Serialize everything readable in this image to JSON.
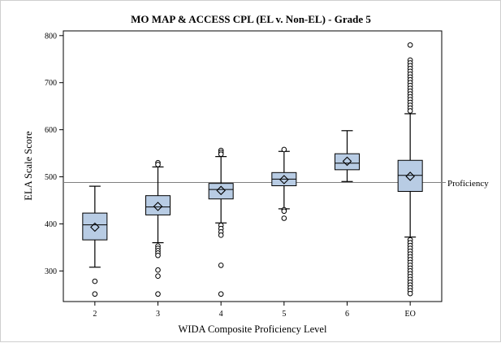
{
  "chart_data": {
    "type": "box",
    "title": "MO MAP & ACCESS CPL (EL v. Non-EL) - Grade 5",
    "xlabel": "WIDA Composite Proficiency Level",
    "ylabel": "ELA Scale Score",
    "categories": [
      "2",
      "3",
      "4",
      "5",
      "6",
      "EO"
    ],
    "y_ticks": [
      300,
      400,
      500,
      600,
      700,
      800
    ],
    "ylim": [
      235,
      810
    ],
    "grid": false,
    "reference_line": {
      "label": "Proficiency",
      "value": 488
    },
    "boxes": [
      {
        "category": "2",
        "whisker_low": 308,
        "q1": 366,
        "median": 398,
        "q3": 423,
        "whisker_high": 480,
        "mean": 393,
        "outliers": [
          278,
          251
        ]
      },
      {
        "category": "3",
        "whisker_low": 360,
        "q1": 419,
        "median": 436,
        "q3": 460,
        "whisker_high": 521,
        "mean": 437,
        "outliers": [
          530,
          526,
          353,
          348,
          343,
          338,
          333,
          302,
          289,
          251
        ]
      },
      {
        "category": "4",
        "whisker_low": 402,
        "q1": 453,
        "median": 473,
        "q3": 486,
        "whisker_high": 543,
        "mean": 471,
        "outliers": [
          556,
          552,
          548,
          397,
          390,
          383,
          376,
          312,
          251
        ]
      },
      {
        "category": "5",
        "whisker_low": 432,
        "q1": 481,
        "median": 495,
        "q3": 509,
        "whisker_high": 554,
        "mean": 494,
        "outliers": [
          558,
          430,
          427,
          412
        ]
      },
      {
        "category": "6",
        "whisker_low": 490,
        "q1": 515,
        "median": 529,
        "q3": 549,
        "whisker_high": 598,
        "mean": 533,
        "outliers": []
      },
      {
        "category": "EO",
        "whisker_low": 372,
        "q1": 469,
        "median": 503,
        "q3": 535,
        "whisker_high": 634,
        "mean": 501,
        "outliers": [
          780,
          748,
          742,
          736,
          730,
          724,
          718,
          712,
          706,
          700,
          694,
          688,
          682,
          676,
          670,
          664,
          658,
          652,
          646,
          640,
          366,
          360,
          354,
          348,
          342,
          336,
          330,
          324,
          318,
          312,
          306,
          300,
          294,
          288,
          282,
          276,
          270,
          264,
          258,
          252
        ]
      }
    ]
  },
  "colors": {
    "box_fill": "#b8cce4",
    "stroke": "#000000",
    "reference_line": "#808080",
    "background": "#ffffff"
  }
}
